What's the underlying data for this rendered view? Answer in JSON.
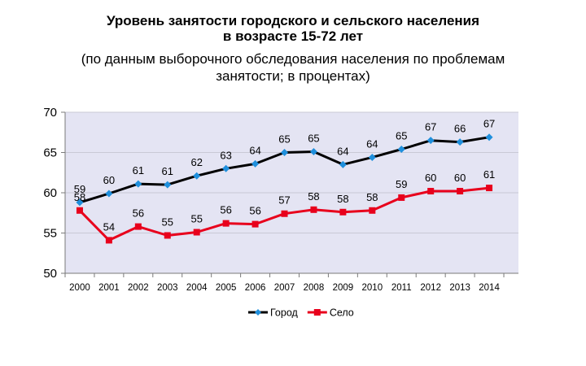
{
  "chart_data": {
    "type": "line",
    "title": "Уровень занятости городского и сельского населения\nв возрасте 15-72 лет",
    "subtitle": "(по данным выборочного обследования населения по проблемам\nзанятости; в процентах)",
    "xlabel": "",
    "ylabel": "",
    "categories": [
      "2000",
      "2001",
      "2002",
      "2003",
      "2004",
      "2005",
      "2006",
      "2007",
      "2008",
      "2009",
      "2010",
      "2011",
      "2012",
      "2013",
      "2014"
    ],
    "ylim": [
      50,
      70
    ],
    "yticks": [
      50,
      55,
      60,
      65,
      70
    ],
    "grid": true,
    "legend_position": "bottom",
    "series": [
      {
        "name": "Город",
        "color": "#000000",
        "marker_color": "#1f8fdc",
        "marker": "diamond",
        "values": [
          58.8,
          59.9,
          61.1,
          61.0,
          62.1,
          63.0,
          63.6,
          65.0,
          65.1,
          63.5,
          64.4,
          65.4,
          66.5,
          66.3,
          66.9
        ],
        "labels": [
          "59",
          "60",
          "61",
          "61",
          "62",
          "63",
          "64",
          "65",
          "65",
          "64",
          "64",
          "65",
          "67",
          "66",
          "67"
        ]
      },
      {
        "name": "Село",
        "color": "#e8001c",
        "marker_color": "#e8001c",
        "marker": "square",
        "values": [
          57.8,
          54.1,
          55.8,
          54.7,
          55.1,
          56.2,
          56.1,
          57.4,
          57.9,
          57.6,
          57.8,
          59.4,
          60.2,
          60.2,
          60.6
        ],
        "labels": [
          "58",
          "54",
          "56",
          "55",
          "55",
          "56",
          "56",
          "57",
          "58",
          "58",
          "58",
          "59",
          "60",
          "60",
          "61"
        ]
      }
    ]
  }
}
